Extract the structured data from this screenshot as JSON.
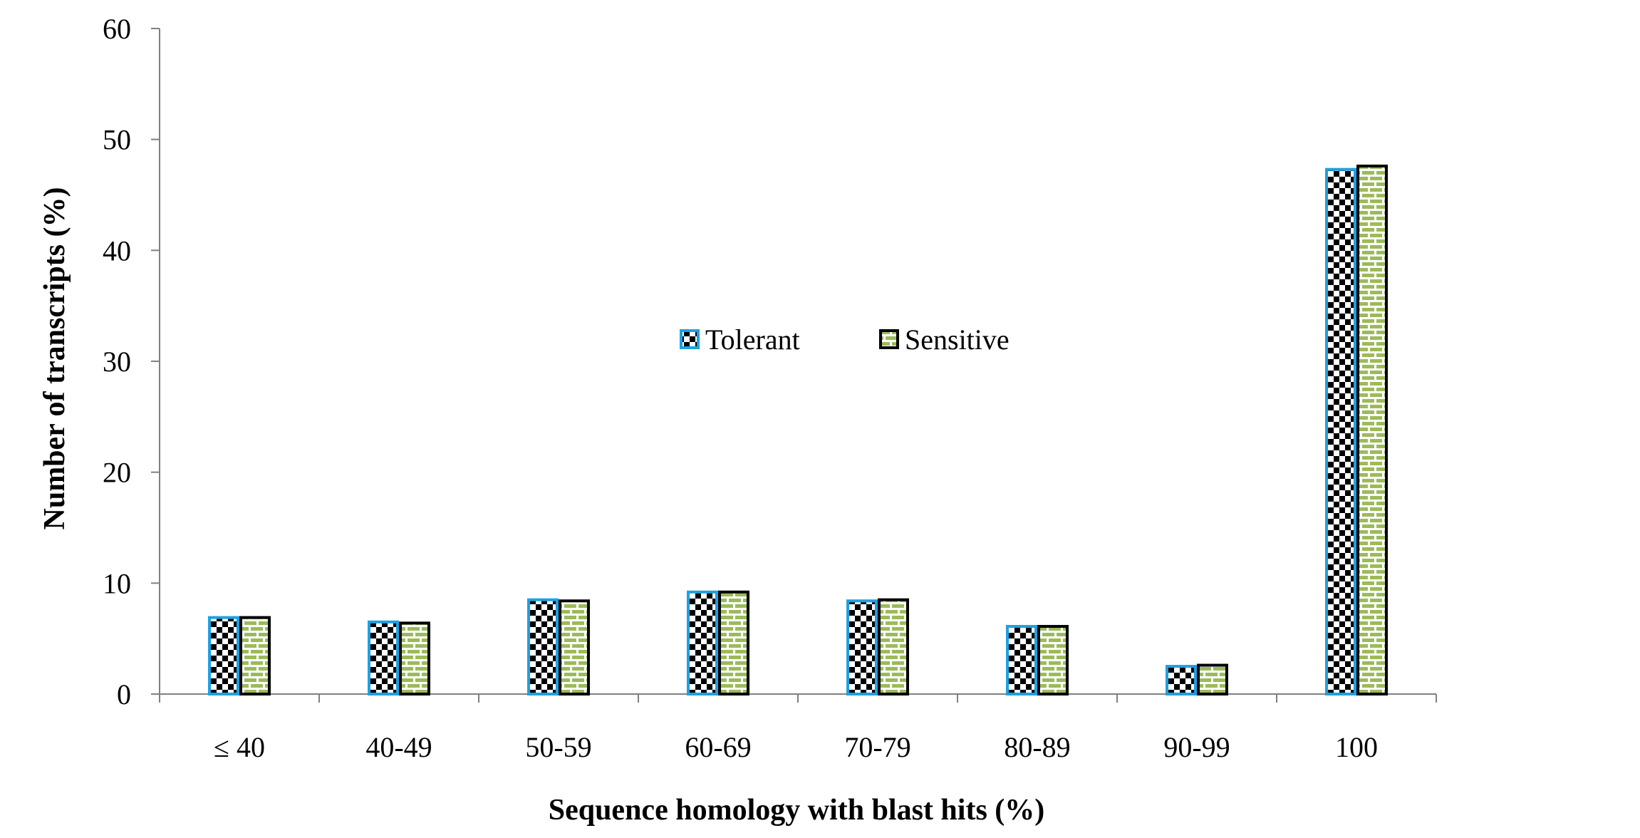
{
  "chart_data": {
    "type": "bar",
    "title": "",
    "xlabel": "Sequence homology with blast hits (%)",
    "ylabel": "Number of transcripts (%)",
    "categories": [
      "≤ 40",
      "40-49",
      "50-59",
      "60-69",
      "70-79",
      "80-89",
      "90-99",
      "100"
    ],
    "ylim": [
      0,
      60
    ],
    "yticks": [
      "0",
      "10",
      "20",
      "30",
      "40",
      "50",
      "60"
    ],
    "grid": false,
    "legend_position": "center",
    "series": [
      {
        "name": "Tolerant",
        "values": [
          6.9,
          6.5,
          8.5,
          9.2,
          8.4,
          6.1,
          2.5,
          47.3
        ],
        "pattern": "checkerboard",
        "border_color": "#1fa0e0"
      },
      {
        "name": "Sensitive",
        "values": [
          6.9,
          6.4,
          8.4,
          9.2,
          8.5,
          6.1,
          2.6,
          47.6
        ],
        "pattern": "green-brick",
        "border_color": "#000000"
      }
    ],
    "colors": {
      "check_fill": "#000000",
      "brick_fill": "#9bbb59",
      "tolerant_border": "#1fa0e0",
      "sensitive_border": "#000000"
    }
  }
}
